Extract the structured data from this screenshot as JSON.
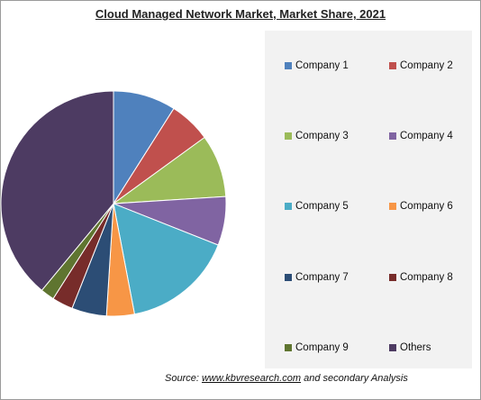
{
  "title": "Cloud Managed Network Market, Market Share, 2021",
  "source": {
    "prefix": "Source:",
    "link": "www.kbvresearch.com",
    "suffix": "and secondary Analysis"
  },
  "chart_data": {
    "type": "pie",
    "title": "Cloud Managed Network Market, Market Share, 2021",
    "labels": [
      "Company 1",
      "Company 2",
      "Company 3",
      "Company 4",
      "Company 5",
      "Company 6",
      "Company 7",
      "Company 8",
      "Company 9",
      "Others"
    ],
    "values": [
      9,
      6,
      9,
      7,
      16,
      4,
      5,
      3,
      2,
      39
    ],
    "colors": [
      "#4f81bd",
      "#c0504d",
      "#9bbb59",
      "#8064a2",
      "#4bacc6",
      "#f79646",
      "#2c4d75",
      "#772c2a",
      "#5f7530",
      "#4d3b62"
    ],
    "legend": "right"
  }
}
